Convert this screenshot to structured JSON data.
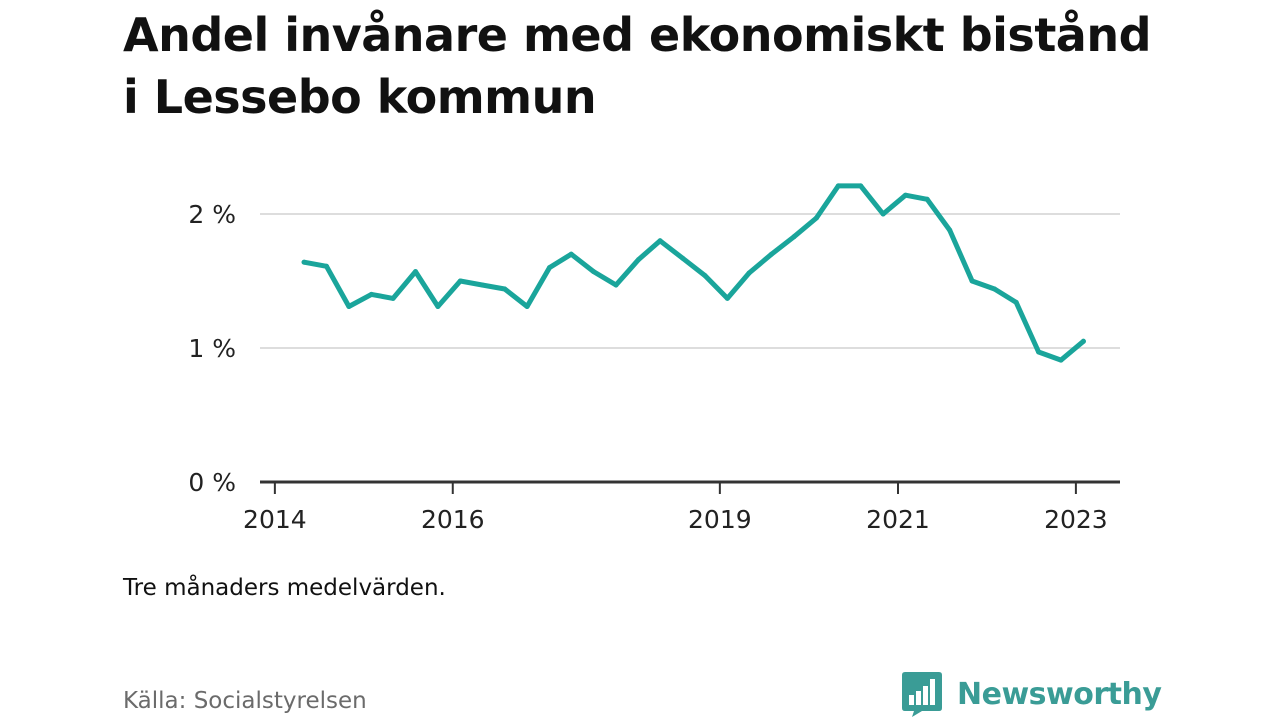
{
  "title": "Andel invånare med ekonomiskt bistånd i Lessebo kommun",
  "note": "Tre månaders medelvärden.",
  "source": "Källa: Socialstyrelsen",
  "brand": {
    "name": "Newsworthy",
    "icon": "newsworthy-bar-chart-logo-icon",
    "color": "#3a9c96"
  },
  "colors": {
    "line": "#1aa59b",
    "grid": "#dddddd",
    "axis": "#333333"
  },
  "chart_data": {
    "type": "line",
    "title": "Andel invånare med ekonomiskt bistånd i Lessebo kommun",
    "xlabel": "",
    "ylabel": "",
    "ylim": [
      0,
      2.5
    ],
    "yticks": [
      {
        "value": 0,
        "label": "0 %"
      },
      {
        "value": 1,
        "label": "1 %"
      },
      {
        "value": 2,
        "label": "2 %"
      }
    ],
    "xticks": [
      {
        "value": "2014-01-01",
        "label": "2014"
      },
      {
        "value": "2016-01-01",
        "label": "2016"
      },
      {
        "value": "2019-01-01",
        "label": "2019"
      },
      {
        "value": "2021-01-01",
        "label": "2021"
      },
      {
        "value": "2023-01-01",
        "label": "2023"
      }
    ],
    "xlim": [
      "2013-11-01",
      "2023-07-01"
    ],
    "grid": true,
    "series": [
      {
        "x": [
          "2014-05-01",
          "2014-08-01",
          "2014-11-01",
          "2015-02-01",
          "2015-05-01",
          "2015-08-01",
          "2015-11-01",
          "2016-02-01",
          "2016-05-01",
          "2016-08-01",
          "2016-11-01",
          "2017-02-01",
          "2017-05-01",
          "2017-08-01",
          "2017-11-01",
          "2018-02-01",
          "2018-05-01",
          "2018-08-01",
          "2018-11-01",
          "2019-02-01",
          "2019-05-01",
          "2019-08-01",
          "2019-11-01",
          "2020-02-01",
          "2020-05-01",
          "2020-08-01",
          "2020-11-01",
          "2021-02-01",
          "2021-05-01",
          "2021-08-01",
          "2021-11-01",
          "2022-02-01",
          "2022-05-01",
          "2022-08-01",
          "2022-11-01",
          "2023-02-01"
        ],
        "values": [
          1.64,
          1.61,
          1.31,
          1.4,
          1.37,
          1.57,
          1.31,
          1.5,
          1.47,
          1.44,
          1.31,
          1.6,
          1.7,
          1.57,
          1.47,
          1.66,
          1.8,
          1.67,
          1.54,
          1.37,
          1.56,
          1.7,
          1.83,
          1.97,
          2.21,
          2.21,
          2.0,
          2.14,
          2.11,
          1.88,
          1.5,
          1.44,
          1.34,
          0.97,
          0.91,
          1.05
        ]
      }
    ]
  }
}
